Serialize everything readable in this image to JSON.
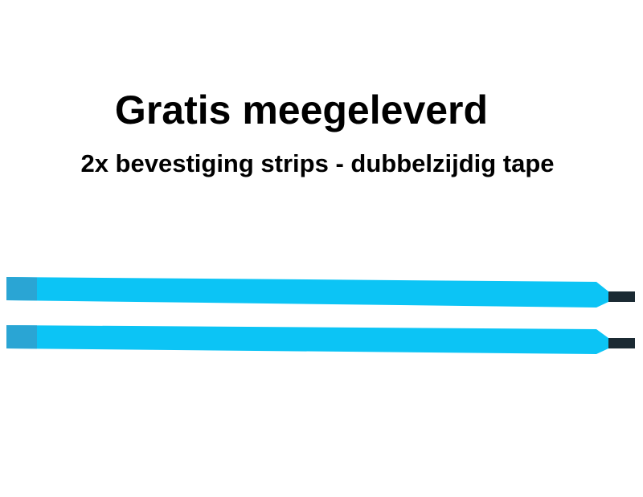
{
  "heading": "Gratis meegeleverd",
  "subheading": "2x bevestiging strips - dubbelzijdig tape",
  "colors": {
    "strip": "#0cc4f5",
    "strip_tab": "#2aa5d4",
    "strip_end": "#1b2a33"
  }
}
